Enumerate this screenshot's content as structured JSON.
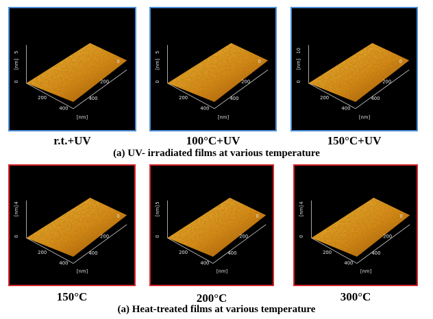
{
  "colors": {
    "uv_border": "#4a8fd9",
    "heat_border": "#d9262c",
    "surface_light": "#f7c64a",
    "surface_dark": "#8a3f06",
    "panel_bg": "#000000"
  },
  "row_uv": {
    "caption": "(a) UV- irradiated films at various temperature",
    "panels": [
      {
        "label": "r.t.+UV",
        "z_label": "[nm]",
        "z_tick": "5",
        "z_zero": "0",
        "x_ticks": [
          "200",
          "400"
        ],
        "y_ticks": [
          "0",
          "200",
          "400"
        ],
        "unit": "[nm]"
      },
      {
        "label": "100°C+UV",
        "z_label": "[nm]",
        "z_tick": "5",
        "z_zero": "0",
        "x_ticks": [
          "200",
          "400"
        ],
        "y_ticks": [
          "0",
          "200",
          "400"
        ],
        "unit": "[nm]"
      },
      {
        "label": "150°C+UV",
        "z_label": "[nm]",
        "z_tick": "10",
        "z_zero": "0",
        "x_ticks": [
          "200",
          "400"
        ],
        "y_ticks": [
          "0",
          "200",
          "400"
        ],
        "unit": "[nm]"
      }
    ]
  },
  "row_heat": {
    "caption": "(a) Heat-treated films at various temperature",
    "panels": [
      {
        "label": "150°C",
        "z_label": "[nm]",
        "z_tick": "4",
        "z_zero": "0",
        "x_ticks": [
          "200",
          "400"
        ],
        "y_ticks": [
          "0",
          "200",
          "400"
        ],
        "unit": "[nm]"
      },
      {
        "label": "200°C",
        "z_label": "[nm]",
        "z_tick": "5",
        "z_zero": "0",
        "x_ticks": [
          "200",
          "400"
        ],
        "y_ticks": [
          "0",
          "200",
          "400"
        ],
        "unit": "[nm]"
      },
      {
        "label": "300°C",
        "z_label": "[nm]",
        "z_tick": "4",
        "z_zero": "0",
        "x_ticks": [
          "200",
          "400"
        ],
        "y_ticks": [
          "0",
          "200",
          "400"
        ],
        "unit": "[nm]"
      }
    ]
  }
}
